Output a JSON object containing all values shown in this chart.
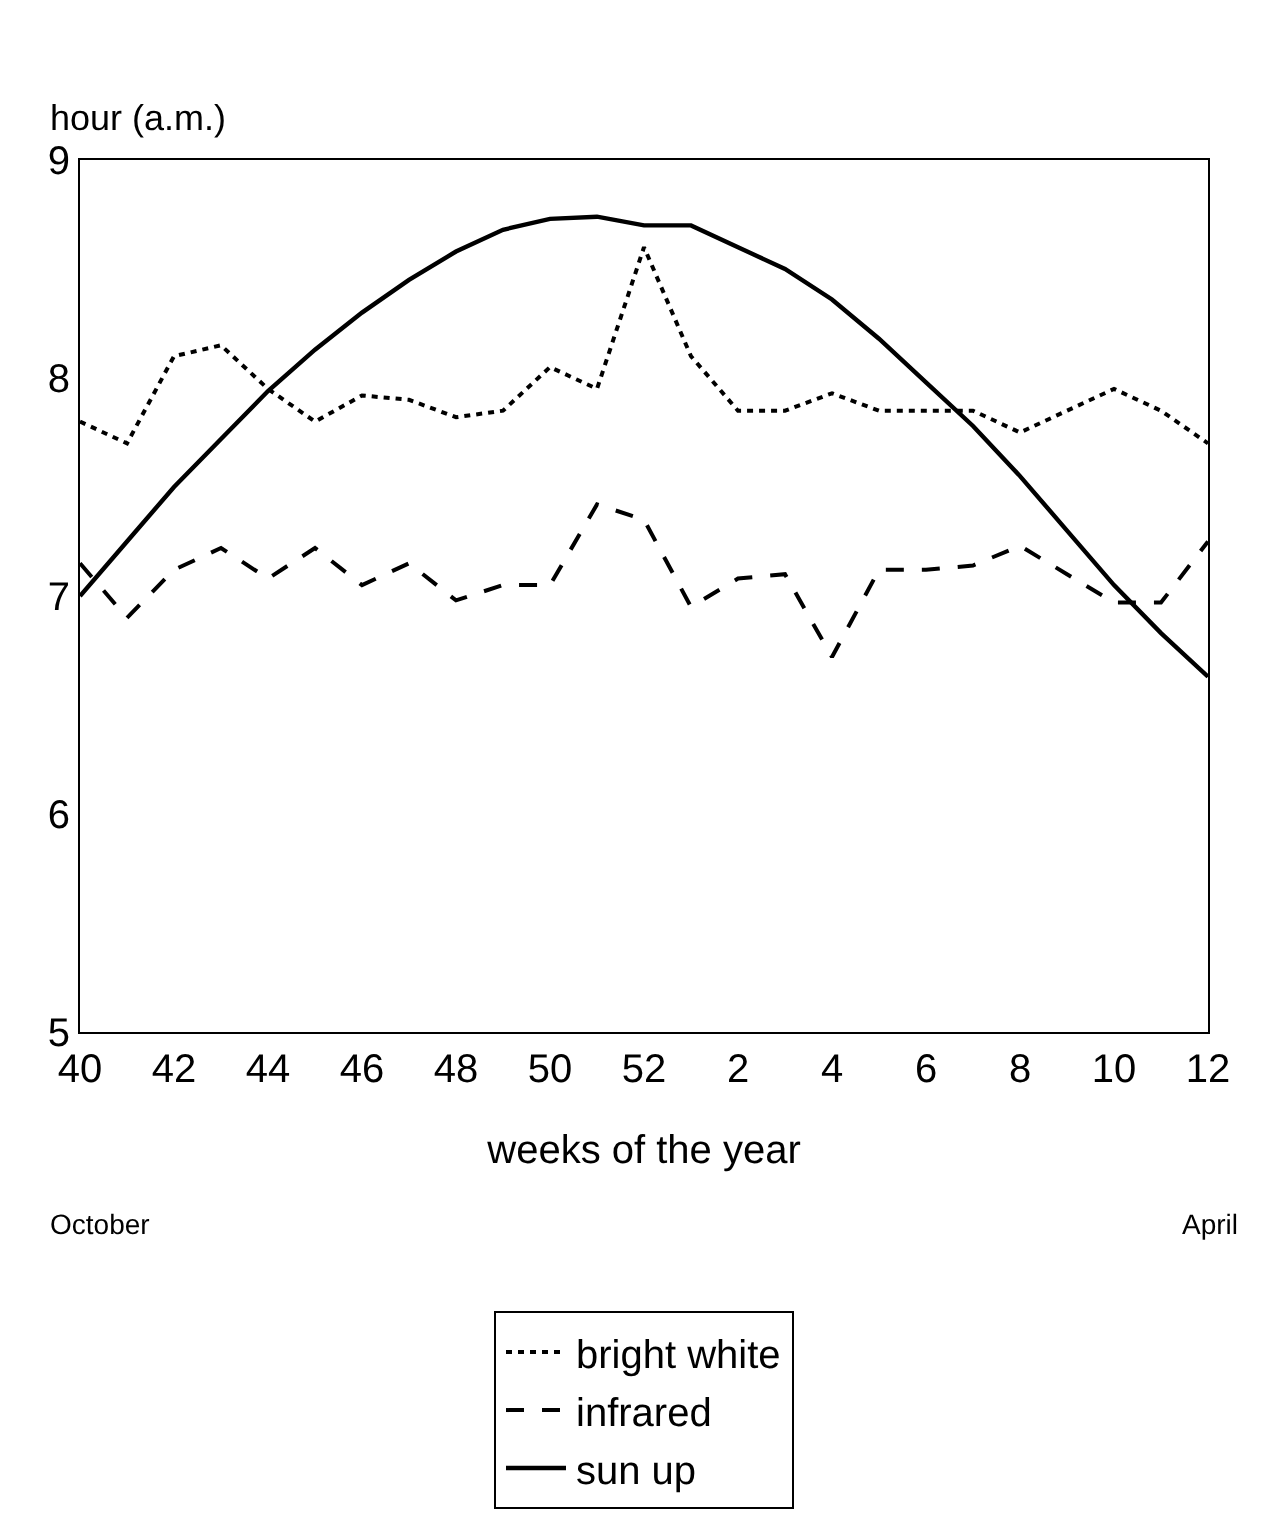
{
  "chart_data": {
    "type": "line",
    "ylabel": "hour (a.m.)",
    "xlabel": "weeks of the year",
    "categories": [
      "40",
      null,
      "42",
      null,
      "44",
      null,
      "46",
      null,
      "48",
      null,
      "50",
      null,
      "52",
      null,
      "2",
      null,
      "4",
      null,
      "6",
      null,
      "8",
      null,
      "10",
      null,
      "12"
    ],
    "series": [
      {
        "name": "bright white",
        "color": "#000000",
        "line_style": "dotted",
        "values": [
          7.8,
          7.7,
          8.1,
          8.15,
          7.95,
          7.8,
          7.92,
          7.9,
          7.82,
          7.85,
          8.05,
          7.95,
          8.6,
          8.1,
          7.85,
          7.85,
          7.93,
          7.85,
          7.85,
          7.85,
          7.75,
          7.85,
          7.95,
          7.85,
          7.7
        ]
      },
      {
        "name": "infrared",
        "color": "#000000",
        "line_style": "dashed",
        "values": [
          7.15,
          6.9,
          7.12,
          7.22,
          7.08,
          7.22,
          7.05,
          7.15,
          6.98,
          7.05,
          7.05,
          7.42,
          7.35,
          6.95,
          7.08,
          7.1,
          6.72,
          7.12,
          7.12,
          7.14,
          7.23,
          7.1,
          6.97,
          6.97,
          7.25
        ]
      },
      {
        "name": "sun up",
        "color": "#000000",
        "line_style": "solid",
        "values": [
          7.0,
          7.25,
          7.5,
          7.72,
          7.94,
          8.13,
          8.3,
          8.45,
          8.58,
          8.68,
          8.73,
          8.74,
          8.7,
          8.7,
          8.6,
          8.5,
          8.36,
          8.18,
          7.98,
          7.78,
          7.55,
          7.3,
          7.05,
          6.83,
          6.63
        ]
      }
    ],
    "ylim": [
      5,
      9
    ],
    "yticks": [
      5,
      6,
      7,
      8,
      9
    ],
    "legend": "bottom",
    "marker": "none",
    "annotations": [
      "October",
      "April"
    ]
  }
}
